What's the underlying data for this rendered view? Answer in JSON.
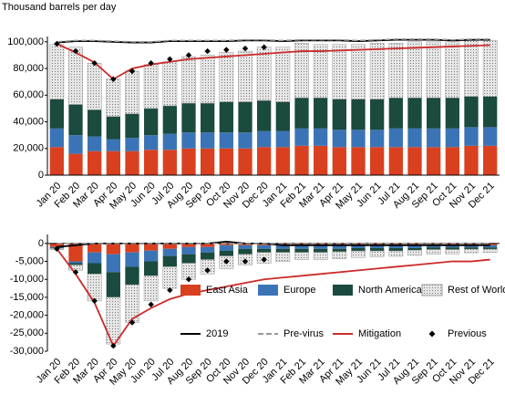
{
  "chart_data": [
    {
      "type": "bar",
      "stacked": true,
      "title": "Thousand barrels per day",
      "categories": [
        "Jan 20",
        "Feb 20",
        "Mar 20",
        "Apr 20",
        "May 20",
        "Jun 20",
        "Jul 20",
        "Aug 20",
        "Sep 20",
        "Oct 20",
        "Nov 20",
        "Dec 20",
        "Jan 21",
        "Feb 21",
        "Mar 21",
        "Apr 21",
        "May 21",
        "Jun 21",
        "Jul 21",
        "Aug 21",
        "Sep 21",
        "Oct 21",
        "Nov 21",
        "Dec 21"
      ],
      "ylim": [
        0,
        104000
      ],
      "yticks": [
        0,
        {
          "value": 20000,
          "label": "20,000"
        },
        {
          "value": 40000,
          "label": "40,000"
        },
        {
          "value": 60000,
          "label": "60,000"
        },
        {
          "value": 80000,
          "label": "80,000"
        },
        {
          "value": 100000,
          "label": "100,000"
        }
      ],
      "grid": false,
      "series": [
        {
          "name": "East Asia",
          "type": "bar",
          "color": "#d9401f",
          "values": [
            21000,
            16000,
            18000,
            18000,
            18000,
            19000,
            19000,
            20000,
            20000,
            20000,
            20000,
            21000,
            21000,
            22000,
            22000,
            21000,
            21000,
            21000,
            21000,
            21000,
            21000,
            21000,
            22000,
            22000
          ]
        },
        {
          "name": "Europe",
          "type": "bar",
          "color": "#3b74b6",
          "values": [
            14000,
            14000,
            11000,
            9000,
            10000,
            11000,
            12000,
            12000,
            12000,
            12000,
            12000,
            12000,
            12000,
            13000,
            13000,
            13000,
            13000,
            13000,
            14000,
            14000,
            14000,
            14000,
            14000,
            14000
          ]
        },
        {
          "name": "North America",
          "type": "bar",
          "color": "#1b4a3e",
          "values": [
            22000,
            23000,
            20000,
            17000,
            18000,
            20000,
            21000,
            22000,
            22000,
            23000,
            23000,
            23000,
            22000,
            23000,
            23000,
            23000,
            23000,
            23000,
            23000,
            23000,
            23000,
            23000,
            23000,
            23000
          ]
        },
        {
          "name": "Rest of World",
          "type": "bar",
          "color": "#e6e6e6",
          "pattern": "dotted",
          "values": [
            41000,
            43000,
            35000,
            28000,
            32000,
            33000,
            33000,
            35000,
            36000,
            37000,
            38000,
            40000,
            41000,
            41000,
            40000,
            41000,
            41000,
            42000,
            41000,
            42000,
            42000,
            42000,
            42000,
            42000
          ]
        },
        {
          "name": "2019",
          "type": "line",
          "color": "#000000",
          "values": [
            99500,
            100500,
            100500,
            100000,
            99500,
            99500,
            100500,
            100500,
            100500,
            100500,
            101000,
            101000,
            100500,
            101000,
            101000,
            101000,
            100500,
            101000,
            101500,
            101500,
            101500,
            101000,
            101500,
            101500
          ]
        },
        {
          "name": "Pre-virus",
          "type": "line",
          "dash": true,
          "color": "#999999",
          "values": [
            100000,
            101000,
            101000,
            100500,
            100000,
            100000,
            101000,
            101000,
            101000,
            101000,
            101500,
            101500,
            101000,
            101500,
            101500,
            101500,
            101000,
            101500,
            102000,
            102000,
            102000,
            101500,
            102000,
            102000
          ]
        },
        {
          "name": "Mitigation",
          "type": "line",
          "color": "#cc2a2a",
          "values": [
            98500,
            92000,
            84500,
            72000,
            80000,
            83000,
            85000,
            87000,
            88000,
            89000,
            90000,
            91000,
            92000,
            93000,
            93000,
            93500,
            94000,
            94500,
            95000,
            95500,
            96000,
            96500,
            97000,
            97500
          ]
        },
        {
          "name": "Previous",
          "type": "scatter",
          "color": "#000000",
          "values": [
            98500,
            93000,
            84000,
            72000,
            78000,
            84000,
            87000,
            90000,
            93000,
            94000,
            95000,
            96000,
            null,
            null,
            null,
            null,
            null,
            null,
            null,
            null,
            null,
            null,
            null,
            null
          ]
        }
      ]
    },
    {
      "type": "bar",
      "stacked": true,
      "categories": [
        "Jan 20",
        "Feb 20",
        "Mar 20",
        "Apr 20",
        "May 20",
        "Jun 20",
        "Jul 20",
        "Aug 20",
        "Sep 20",
        "Oct 20",
        "Nov 20",
        "Dec 20",
        "Jan 21",
        "Feb 21",
        "Mar 21",
        "Apr 21",
        "May 21",
        "Jun 21",
        "Jul 21",
        "Aug 21",
        "Sep 21",
        "Oct 21",
        "Nov 21",
        "Dec 21"
      ],
      "ylim": [
        -30000,
        2500
      ],
      "yticks": [
        0,
        {
          "value": -5000,
          "label": "-5,000"
        },
        {
          "value": -10000,
          "label": "-10,000"
        },
        {
          "value": -15000,
          "label": "-15,000"
        },
        {
          "value": -20000,
          "label": "-20,000"
        },
        {
          "value": -25000,
          "label": "-25,000"
        },
        {
          "value": -30000,
          "label": "-30,000"
        }
      ],
      "grid": false,
      "legend": "lower right",
      "series": [
        {
          "name": "East Asia",
          "type": "bar",
          "color": "#d9401f",
          "values": [
            -1000,
            -5000,
            -2500,
            -3000,
            -2500,
            -2000,
            -1500,
            -1000,
            -1000,
            -500,
            -500,
            -500,
            -500,
            -500,
            -500,
            -500,
            -500,
            -500,
            -500,
            -500,
            -500,
            -500,
            -500,
            -500
          ]
        },
        {
          "name": "Europe",
          "type": "bar",
          "color": "#3b74b6",
          "values": [
            -200,
            -500,
            -3000,
            -5000,
            -4000,
            -3000,
            -2000,
            -2000,
            -1500,
            -1500,
            -1000,
            -1000,
            -1000,
            -1000,
            -1000,
            -1000,
            -800,
            -800,
            -800,
            -800,
            -600,
            -600,
            -600,
            -600
          ]
        },
        {
          "name": "North America",
          "type": "bar",
          "color": "#1b4a3e",
          "values": [
            -200,
            -500,
            -3000,
            -7000,
            -5000,
            -4000,
            -3000,
            -2500,
            -2000,
            -1500,
            -1500,
            -1000,
            -1000,
            -1000,
            -1000,
            -800,
            -800,
            -800,
            -800,
            -600,
            -600,
            -600,
            -500,
            -500
          ]
        },
        {
          "name": "Rest of World",
          "type": "bar",
          "color": "#e6e6e6",
          "pattern": "dotted",
          "values": [
            -300,
            -1500,
            -7500,
            -13000,
            -10500,
            -7000,
            -6000,
            -4500,
            -4000,
            -3500,
            -3000,
            -3000,
            -2500,
            -2000,
            -2000,
            -2000,
            -1800,
            -1600,
            -1500,
            -1400,
            -1300,
            -1200,
            -1000,
            -900
          ]
        },
        {
          "name": "2019",
          "type": "line",
          "color": "#000000",
          "values": [
            -1000,
            -500,
            0,
            0,
            0,
            0,
            0,
            0,
            0,
            500,
            0,
            0,
            -500,
            -500,
            -500,
            -500,
            -500,
            -500,
            -500,
            -500,
            -500,
            -500,
            -500,
            -500
          ]
        },
        {
          "name": "Pre-virus",
          "type": "line",
          "dash": true,
          "color": "#999999",
          "values": [
            0,
            0,
            0,
            0,
            0,
            0,
            0,
            0,
            0,
            0,
            0,
            0,
            0,
            0,
            0,
            0,
            0,
            0,
            0,
            0,
            0,
            0,
            0,
            0
          ]
        },
        {
          "name": "Mitigation",
          "type": "line",
          "color": "#cc2a2a",
          "values": [
            -1500,
            -8500,
            -16500,
            -28500,
            -21000,
            -18000,
            -15500,
            -14000,
            -13000,
            -12000,
            -11000,
            -10000,
            -9500,
            -9000,
            -8500,
            -8000,
            -7500,
            -7000,
            -6500,
            -6000,
            -5500,
            -5000,
            -5000,
            -4500
          ]
        },
        {
          "name": "Previous",
          "type": "scatter",
          "color": "#000000",
          "values": [
            -1500,
            -8000,
            -16000,
            -28500,
            -22000,
            -17000,
            -13000,
            -10000,
            -7500,
            -5000,
            -5000,
            -4500,
            null,
            null,
            null,
            null,
            null,
            null,
            null,
            null,
            null,
            null,
            null,
            null
          ]
        }
      ]
    }
  ]
}
